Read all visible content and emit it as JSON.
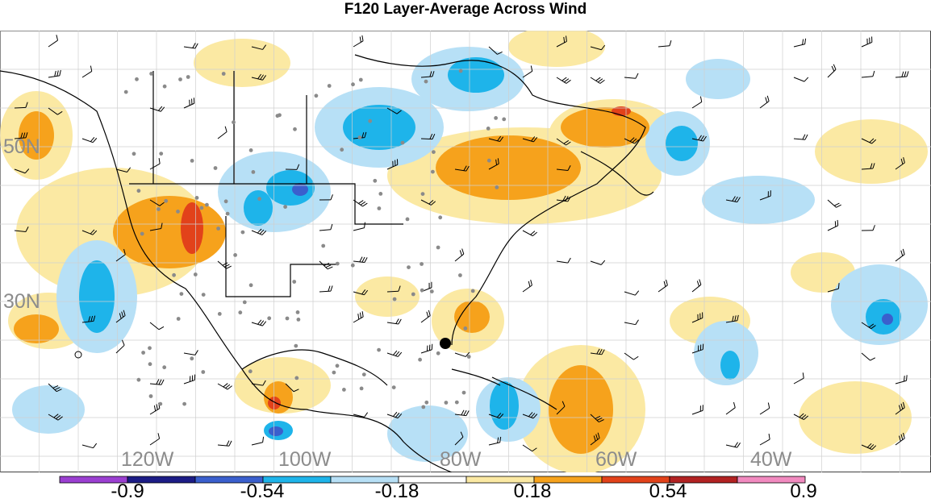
{
  "title": "F120 Layer-Average Across Wind",
  "lat_labels": [
    "50N",
    "30N"
  ],
  "lon_labels": [
    "120W",
    "100W",
    "80W",
    "60W",
    "40W"
  ],
  "colorbar": {
    "labels": [
      "-0.9",
      "-0.54",
      "-0.18",
      "0.18",
      "0.54",
      "0.9"
    ],
    "colors": [
      "#9b3fd1",
      "#1c1c86",
      "#3a5fcd",
      "#1eb4ea",
      "#b7e0f6",
      "#ffffff",
      "#fbe9a3",
      "#f6a21c",
      "#e2421a",
      "#b22222",
      "#f18abf"
    ]
  },
  "palette": {
    "neg_light": "#b7e0f6",
    "neg_mid": "#1eb4ea",
    "neg_strong": "#3a5fcd",
    "pos_light": "#fbe9a3",
    "pos_mid": "#f6a21c",
    "pos_strong": "#e2421a",
    "station_dot": "#8a8a8a",
    "grid": "#cfcfcf",
    "land_outline": "#000000"
  }
}
